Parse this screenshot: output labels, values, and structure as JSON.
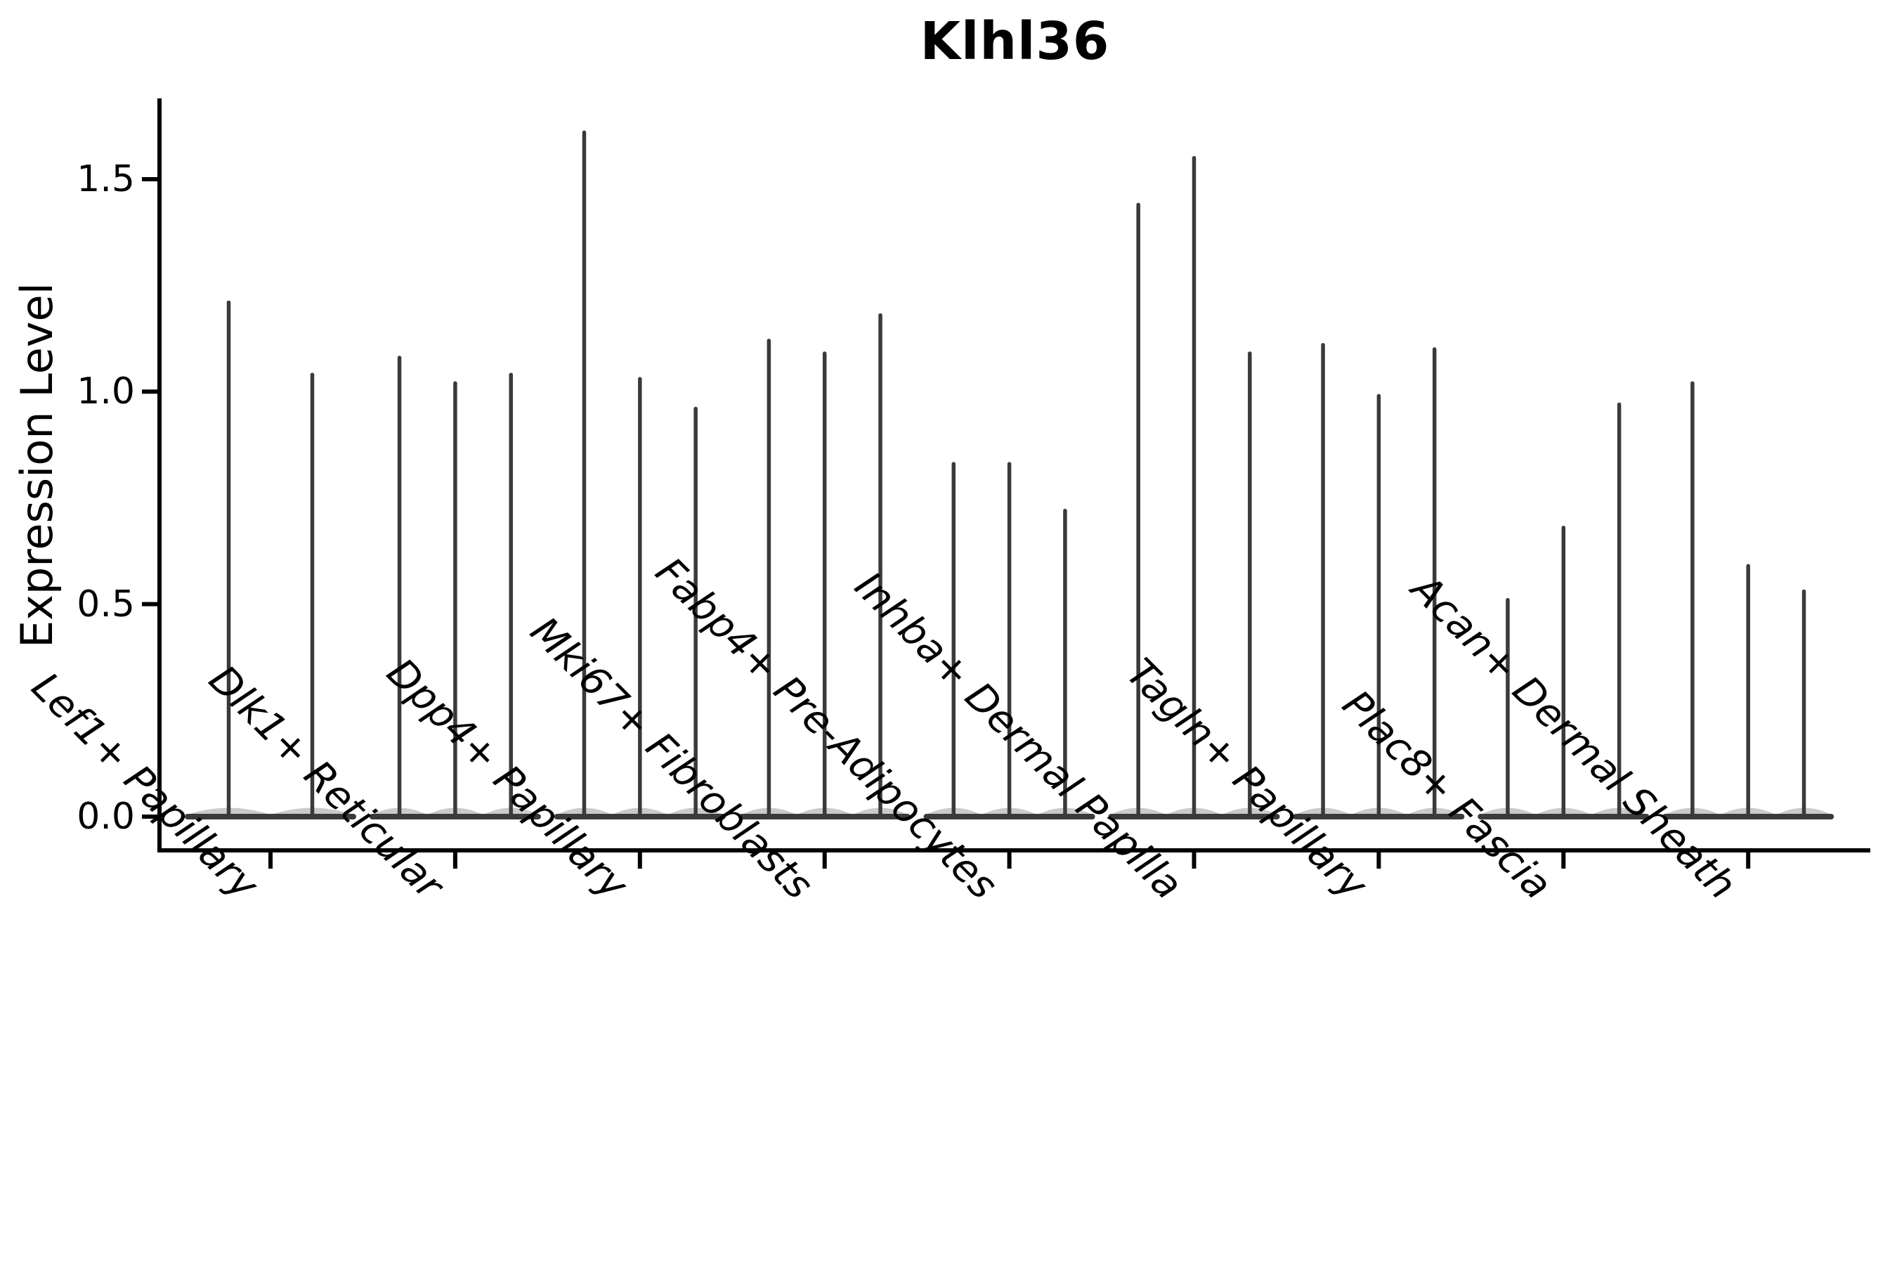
{
  "title": "Klhl36",
  "ylabel": "Expression Level",
  "colors": {
    "violin": "#3a3a3a",
    "violin_fill": "#8a8a8a",
    "axis": "#000000",
    "text": "#000000",
    "background": "#ffffff"
  },
  "chart_data": {
    "type": "violin",
    "title": "Klhl36",
    "xlabel": "",
    "ylabel": "Expression Level",
    "ylim": [
      0,
      1.69
    ],
    "yticks": [
      0.0,
      0.5,
      1.0,
      1.5
    ],
    "grid": false,
    "legend": null,
    "x_tick_rotation": 45,
    "x_tick_style": "italic",
    "categories": [
      "Lef1+ Papillary",
      "Dlk1+ Reticular",
      "Dpp4+ Papillary",
      "Mki67+ Fibroblasts",
      "Fabp4+ Pre-Adipocytes",
      "Inhba+ Dermal Papilla",
      "Tagln+ Papillary",
      "Plac8+ Fascia",
      "Acan+ Dermal Sheath"
    ],
    "groups": [
      {
        "category": "Lef1+ Papillary",
        "violin_max_values": [
          1.21,
          1.04
        ],
        "violin_min_value": 0.0
      },
      {
        "category": "Dlk1+ Reticular",
        "violin_max_values": [
          1.08,
          1.02,
          1.04
        ],
        "violin_min_value": 0.0
      },
      {
        "category": "Dpp4+ Papillary",
        "violin_max_values": [
          1.61,
          1.03,
          0.96
        ],
        "violin_min_value": 0.0
      },
      {
        "category": "Mki67+ Fibroblasts",
        "violin_max_values": [
          1.12,
          1.09,
          1.18
        ],
        "violin_min_value": 0.0
      },
      {
        "category": "Fabp4+ Pre-Adipocytes",
        "violin_max_values": [
          0.83,
          0.83,
          0.72
        ],
        "violin_min_value": 0.0
      },
      {
        "category": "Inhba+ Dermal Papilla",
        "violin_max_values": [
          1.44,
          1.55,
          1.09
        ],
        "violin_min_value": 0.0
      },
      {
        "category": "Tagln+ Papillary",
        "violin_max_values": [
          1.11,
          0.99,
          1.1
        ],
        "violin_min_value": 0.0
      },
      {
        "category": "Plac8+ Fascia",
        "violin_max_values": [
          0.51,
          0.68,
          0.97
        ],
        "violin_min_value": 0.0
      },
      {
        "category": "Acan+ Dermal Sheath",
        "violin_max_values": [
          1.02,
          0.59,
          0.53
        ],
        "violin_min_value": 0.0
      }
    ],
    "note": "Collapsed violins: dense mass at 0 expression with thin spikes up to the max expression value per violin"
  }
}
